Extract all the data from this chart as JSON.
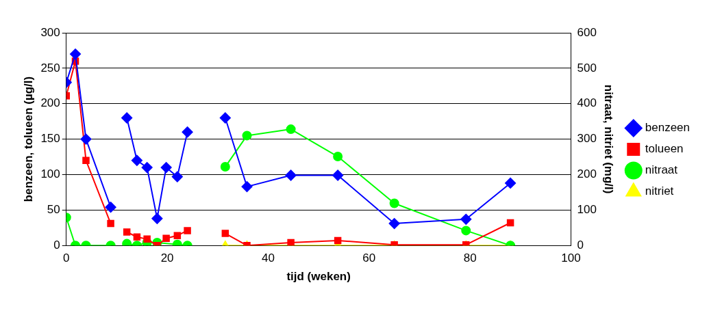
{
  "chart_data": {
    "type": "line",
    "xlabel": "tijd (weken)",
    "ylabel": "benzeen, tolueen (µg/l)",
    "y2label": "nitraat, nitriet (mg/l)",
    "xlim": [
      0,
      100
    ],
    "xticks": [
      0,
      20,
      40,
      60,
      80,
      100
    ],
    "ylim": [
      0,
      300
    ],
    "yticks": [
      0,
      50,
      100,
      150,
      200,
      250,
      300
    ],
    "y2lim": [
      0,
      600
    ],
    "y2ticks": [
      0,
      100,
      200,
      300,
      400,
      500,
      600
    ],
    "grid": "y",
    "legend": "right",
    "line_style": "solid",
    "series": [
      {
        "name": "benzeen",
        "color": "#0000ff",
        "marker": "diamond",
        "x": [
          0,
          1.8,
          3.9,
          8.8,
          10,
          12,
          14,
          16,
          18,
          19.8,
          22,
          24,
          28,
          31.5,
          35.8,
          44.5,
          53.8,
          65,
          79.2,
          88
        ],
        "values": [
          230,
          270,
          150,
          54,
          null,
          180,
          120,
          110,
          38,
          110,
          97,
          160,
          null,
          180,
          83,
          99,
          99,
          31,
          37,
          88
        ]
      },
      {
        "name": "tolueen",
        "color": "#ff0000",
        "marker": "square",
        "x": [
          0,
          1.8,
          3.9,
          8.8,
          10,
          12,
          14,
          16,
          18,
          19.8,
          22,
          24,
          28,
          31.5,
          35.8,
          44.5,
          53.8,
          65,
          79.2,
          88
        ],
        "values": [
          211,
          260,
          120,
          31,
          null,
          19,
          12,
          9,
          0,
          10,
          14,
          21,
          null,
          17,
          0,
          4,
          7,
          1,
          1,
          32
        ]
      },
      {
        "name": "nitraat",
        "color": "#00ff00",
        "marker": "circle",
        "axis": "y2",
        "x": [
          0,
          1.8,
          3.9,
          8.8,
          10,
          12,
          14,
          16,
          18,
          22,
          24,
          28,
          31.5,
          35.8,
          44.5,
          53.8,
          65,
          79.2,
          88
        ],
        "values": [
          79,
          0,
          0,
          0,
          null,
          5,
          0,
          8,
          8,
          3,
          0,
          null,
          222,
          310,
          328,
          251,
          119,
          42,
          0
        ]
      },
      {
        "name": "nitriet",
        "color": "#ffff00",
        "marker": "triangle",
        "axis": "y2",
        "x": [
          31.5,
          35.8,
          44.5,
          53.8,
          65,
          79.2,
          88
        ],
        "values": [
          0,
          0,
          0,
          0,
          0,
          0,
          0
        ]
      }
    ]
  }
}
